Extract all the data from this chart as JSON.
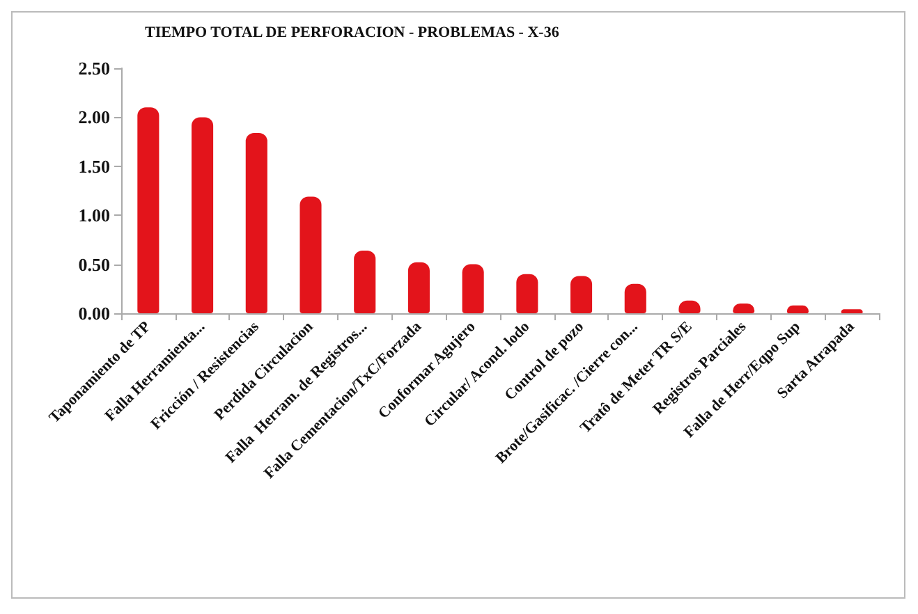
{
  "chart_data": {
    "type": "bar",
    "title": "TIEMPO TOTAL DE PERFORACION - PROBLEMAS - X-36",
    "categories": [
      "Taponamiento de TP",
      "Falla Herramienta...",
      "Fricción / Resistencias",
      "Perdida Circulacion",
      "Falla  Herram. de Registros...",
      "Falla Cementacion/TxC/Forzada",
      "Conformar Agujero",
      "Circular/ Acond. lodo",
      "Control de pozo",
      "Brote/Gasificac. /Cierre con...",
      "Tratô de Meter TR S/E",
      "Registros Parciales",
      "Falla de Herr/Eqpo Sup",
      "Sarta Atrapada"
    ],
    "values": [
      2.1,
      2.0,
      1.84,
      1.19,
      0.64,
      0.52,
      0.5,
      0.4,
      0.38,
      0.3,
      0.13,
      0.1,
      0.08,
      0.04
    ],
    "color": "#e3141b",
    "ylim": [
      0,
      2.5
    ],
    "yticks": [
      {
        "value": 0,
        "label": "0.00"
      },
      {
        "value": 0.5,
        "label": "0.50"
      },
      {
        "value": 1,
        "label": "1.00"
      },
      {
        "value": 1.5,
        "label": "1.50"
      },
      {
        "value": 2,
        "label": "2.00"
      },
      {
        "value": 2.5,
        "label": "2.50"
      }
    ],
    "grid": false
  }
}
